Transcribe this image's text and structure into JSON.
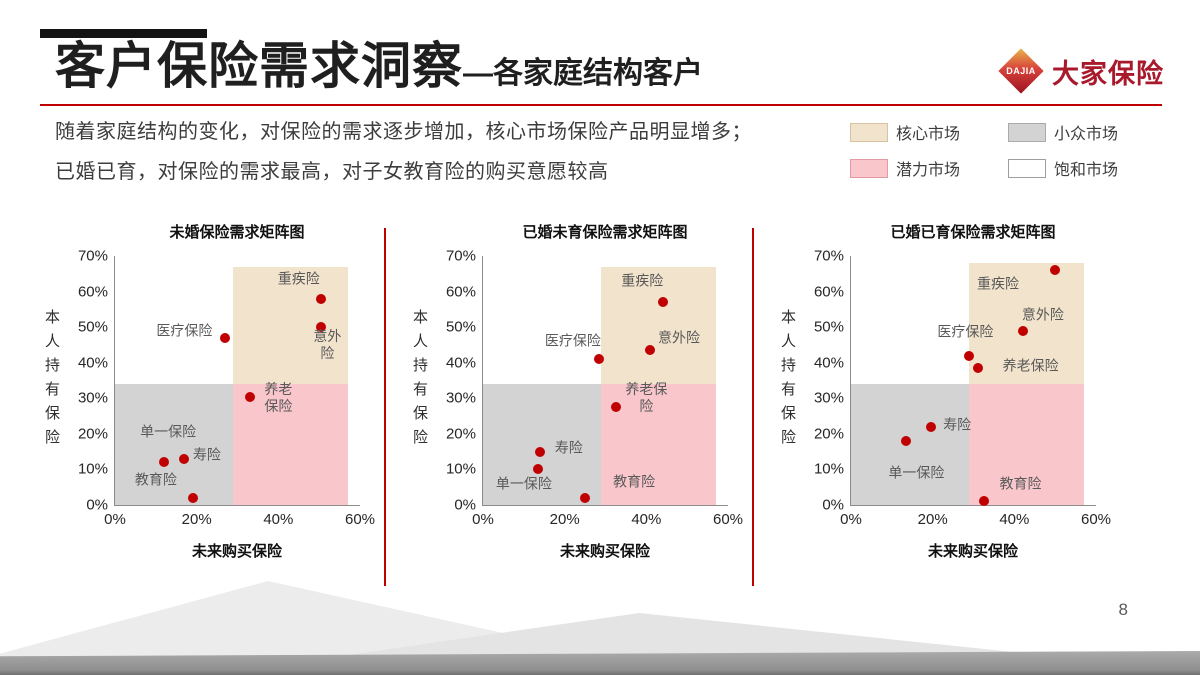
{
  "slide": {
    "title": "客户保险需求洞察",
    "subtitle": "—各家庭结构客户",
    "body_lines": [
      "随着家庭结构的变化，对保险的需求逐步增加，核心市场保险产品明显增多；",
      "已婚已育，对保险的需求最高，对子女教育险的购买意愿较高"
    ],
    "page_number": "8"
  },
  "logo": {
    "mark_text": "DAJIA",
    "brand_name": "大家保险"
  },
  "legend": {
    "items": [
      {
        "label": "核心市场",
        "color": "#F2E3CC",
        "border": "#D8C3A0"
      },
      {
        "label": "小众市场",
        "color": "#D3D3D3",
        "border": "#ABABAB"
      },
      {
        "label": "潜力市场",
        "color": "#F8C6CB",
        "border": "#E39AA3"
      },
      {
        "label": "饱和市场",
        "color": "#FFFFFF",
        "border": "#9E9E9E"
      }
    ]
  },
  "colors": {
    "accent_red": "#C00000",
    "dot": "#C00000"
  },
  "chart_data": [
    {
      "type": "scatter",
      "title": "未婚保险需求矩阵图",
      "xlabel": "未来购买保险",
      "ylabel": "本人持有保险",
      "unit": "%",
      "xlim": [
        0,
        60
      ],
      "ylim": [
        0,
        70
      ],
      "x_ticks": [
        "0%",
        "20%",
        "40%",
        "60%"
      ],
      "y_ticks": [
        "0%",
        "10%",
        "20%",
        "30%",
        "40%",
        "50%",
        "60%",
        "70%"
      ],
      "grid": false,
      "quadrants": [
        {
          "name": "小众市场",
          "x0": 0,
          "x1": 29,
          "y0": 0,
          "y1": 34,
          "color": "#D3D3D3"
        },
        {
          "name": "潜力市场",
          "x0": 29,
          "x1": 57,
          "y0": 0,
          "y1": 34,
          "color": "#F8C6CB"
        },
        {
          "name": "核心市场",
          "x0": 29,
          "x1": 57,
          "y0": 34,
          "y1": 67,
          "color": "#F2E3CC"
        }
      ],
      "points": [
        {
          "label": "重疾险",
          "x": 50.5,
          "y": 58,
          "lx": 45,
          "ly": 63.5
        },
        {
          "label": "意外险",
          "x": 50.5,
          "y": 50,
          "lx": 52,
          "ly": 45
        },
        {
          "label": "医疗保险",
          "x": 27,
          "y": 47,
          "lx": 17,
          "ly": 49
        },
        {
          "label": "养老\n保险",
          "x": 33,
          "y": 30.5,
          "lx": 40,
          "ly": 30
        },
        {
          "label": "单一保险",
          "x": 12,
          "y": 12,
          "lx": 13,
          "ly": 20.5
        },
        {
          "label": "寿险",
          "x": 17,
          "y": 13,
          "lx": 22.5,
          "ly": 14
        },
        {
          "label": "教育险",
          "x": 19,
          "y": 2,
          "lx": 10,
          "ly": 7
        }
      ]
    },
    {
      "type": "scatter",
      "title": "已婚未育保险需求矩阵图",
      "xlabel": "未来购买保险",
      "ylabel": "本人持有保险",
      "unit": "%",
      "xlim": [
        0,
        60
      ],
      "ylim": [
        0,
        70
      ],
      "x_ticks": [
        "0%",
        "20%",
        "40%",
        "60%"
      ],
      "y_ticks": [
        "0%",
        "10%",
        "20%",
        "30%",
        "40%",
        "50%",
        "60%",
        "70%"
      ],
      "grid": false,
      "quadrants": [
        {
          "name": "小众市场",
          "x0": 0,
          "x1": 29,
          "y0": 0,
          "y1": 34,
          "color": "#D3D3D3"
        },
        {
          "name": "潜力市场",
          "x0": 29,
          "x1": 57,
          "y0": 0,
          "y1": 34,
          "color": "#F8C6CB"
        },
        {
          "name": "核心市场",
          "x0": 29,
          "x1": 57,
          "y0": 34,
          "y1": 67,
          "color": "#F2E3CC"
        }
      ],
      "points": [
        {
          "label": "重疾险",
          "x": 44,
          "y": 57,
          "lx": 39,
          "ly": 63
        },
        {
          "label": "意外险",
          "x": 41,
          "y": 43.5,
          "lx": 48,
          "ly": 47
        },
        {
          "label": "医疗保险",
          "x": 28.5,
          "y": 41,
          "lx": 22,
          "ly": 46
        },
        {
          "label": "养老保\n险",
          "x": 32.5,
          "y": 27.5,
          "lx": 40,
          "ly": 30
        },
        {
          "label": "寿险",
          "x": 14,
          "y": 15,
          "lx": 21,
          "ly": 16
        },
        {
          "label": "单一保险",
          "x": 13.5,
          "y": 10,
          "lx": 10,
          "ly": 6
        },
        {
          "label": "教育险",
          "x": 25,
          "y": 2,
          "lx": 37,
          "ly": 6.5
        }
      ]
    },
    {
      "type": "scatter",
      "title": "已婚已育保险需求矩阵图",
      "xlabel": "未来购买保险",
      "ylabel": "本人持有保险",
      "unit": "%",
      "xlim": [
        0,
        60
      ],
      "ylim": [
        0,
        70
      ],
      "x_ticks": [
        "0%",
        "20%",
        "40%",
        "60%"
      ],
      "y_ticks": [
        "0%",
        "10%",
        "20%",
        "30%",
        "40%",
        "50%",
        "60%",
        "70%"
      ],
      "grid": false,
      "quadrants": [
        {
          "name": "小众市场",
          "x0": 0,
          "x1": 29,
          "y0": 0,
          "y1": 34,
          "color": "#D3D3D3"
        },
        {
          "name": "潜力市场",
          "x0": 29,
          "x1": 57,
          "y0": 0,
          "y1": 34,
          "color": "#F8C6CB"
        },
        {
          "name": "核心市场",
          "x0": 29,
          "x1": 57,
          "y0": 34,
          "y1": 68,
          "color": "#F2E3CC"
        }
      ],
      "points": [
        {
          "label": "重疾险",
          "x": 50,
          "y": 66,
          "lx": 36,
          "ly": 62
        },
        {
          "label": "意外险",
          "x": 42,
          "y": 49,
          "lx": 47,
          "ly": 53.5
        },
        {
          "label": "医疗保险",
          "x": 29,
          "y": 42,
          "lx": 28,
          "ly": 48.5
        },
        {
          "label": "养老保险",
          "x": 31,
          "y": 38.5,
          "lx": 44,
          "ly": 39
        },
        {
          "label": "寿险",
          "x": 19.5,
          "y": 22,
          "lx": 26,
          "ly": 22.5
        },
        {
          "label": "单一保险",
          "x": 13.5,
          "y": 18,
          "lx": 16,
          "ly": 9
        },
        {
          "label": "教育险",
          "x": 32.5,
          "y": 1,
          "lx": 41.5,
          "ly": 6
        }
      ]
    }
  ]
}
